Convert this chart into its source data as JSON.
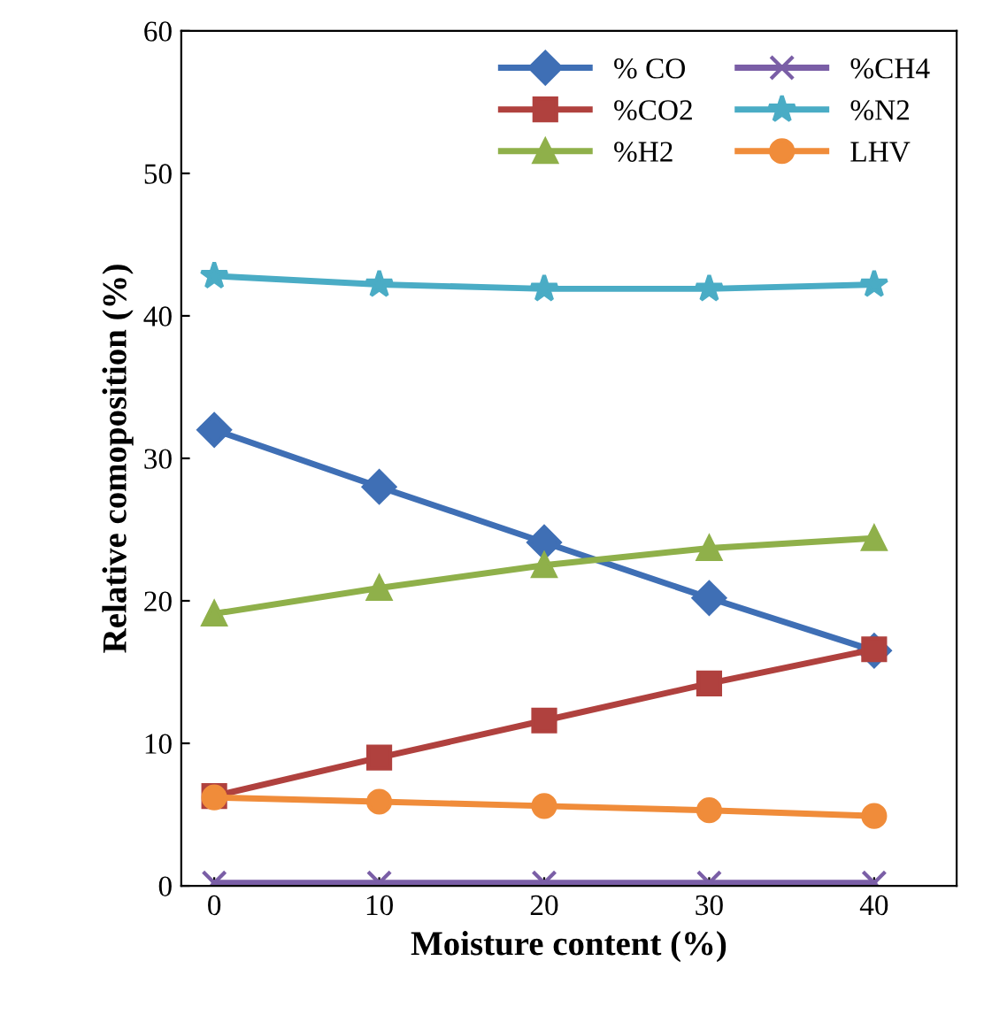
{
  "chart_data": {
    "type": "line",
    "xlabel": "Moisture content (%)",
    "ylabel": "Relative comoposition (%)",
    "x": [
      0,
      10,
      20,
      30,
      40
    ],
    "xlim": [
      -2,
      45
    ],
    "xticks": [
      0,
      10,
      20,
      30,
      40
    ],
    "ylim": [
      0,
      60
    ],
    "yticks": [
      0,
      10,
      20,
      30,
      40,
      50,
      60
    ],
    "grid": false,
    "legend": "top right",
    "series": [
      {
        "name": "% CO",
        "color": "#3f6fb5",
        "marker": "diamond",
        "values": [
          32.0,
          28.0,
          24.1,
          20.2,
          16.5
        ]
      },
      {
        "name": "%CO2",
        "color": "#b0413e",
        "marker": "square",
        "values": [
          6.3,
          9.0,
          11.6,
          14.2,
          16.6
        ]
      },
      {
        "name": "%H2",
        "color": "#8fb04a",
        "marker": "triangle",
        "values": [
          19.1,
          20.9,
          22.5,
          23.7,
          24.4
        ]
      },
      {
        "name": "%CH4",
        "color": "#7a5ea6",
        "marker": "cross",
        "values": [
          0.2,
          0.2,
          0.2,
          0.2,
          0.2
        ]
      },
      {
        "name": "%N2",
        "color": "#4aacc5",
        "marker": "star",
        "values": [
          42.8,
          42.2,
          41.9,
          41.9,
          42.2
        ]
      },
      {
        "name": "LHV",
        "color": "#f08c3a",
        "marker": "circle",
        "values": [
          6.2,
          5.9,
          5.6,
          5.3,
          4.9
        ]
      }
    ]
  }
}
